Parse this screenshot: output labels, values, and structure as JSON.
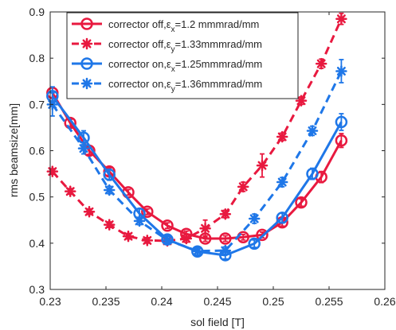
{
  "chart_data": {
    "type": "line",
    "xlabel": "sol field [T]",
    "ylabel": "rms beamsize[mm]",
    "xlim": [
      0.23,
      0.26
    ],
    "ylim": [
      0.3,
      0.9
    ],
    "xticks": [
      "0.23",
      "0.235",
      "0.24",
      "0.245",
      "0.25",
      "0.255",
      "0.26"
    ],
    "yticks": [
      "0.3",
      "0.4",
      "0.5",
      "0.6",
      "0.7",
      "0.8",
      "0.9"
    ],
    "grid": false,
    "legend_position": "top-left",
    "series": [
      {
        "name": "corrector off,εx=1.2 mmmrad/mm",
        "legend": {
          "prefix": "corrector off,",
          "sym": "ε",
          "sub": "x",
          "suffix": "=1.2 mmmrad/mm"
        },
        "color": "#e8193f",
        "marker": "circle",
        "linestyle": "solid",
        "x": [
          0.2302,
          0.2318,
          0.2335,
          0.2353,
          0.237,
          0.2387,
          0.2405,
          0.2422,
          0.2439,
          0.2457,
          0.2473,
          0.249,
          0.2508,
          0.2525,
          0.2543,
          0.2561
        ],
        "y": [
          0.725,
          0.66,
          0.6,
          0.555,
          0.51,
          0.468,
          0.438,
          0.42,
          0.41,
          0.41,
          0.413,
          0.418,
          0.445,
          0.488,
          0.543,
          0.622
        ],
        "err": [
          0.012,
          0.008,
          0.008,
          0.008,
          0.006,
          0.006,
          0.006,
          0.006,
          0.006,
          0.006,
          0.006,
          0.006,
          0.008,
          0.008,
          0.012,
          0.015
        ]
      },
      {
        "name": "corrector off,εy=1.33mmmrad/mm",
        "legend": {
          "prefix": "corrector off,",
          "sym": "ε",
          "sub": "y",
          "suffix": "=1.33mmmrad/mm"
        },
        "color": "#e8193f",
        "marker": "asterisk",
        "linestyle": "dashed",
        "x": [
          0.2302,
          0.2318,
          0.2335,
          0.2353,
          0.237,
          0.2387,
          0.2405,
          0.2422,
          0.2439,
          0.2457,
          0.2473,
          0.249,
          0.2508,
          0.2525,
          0.2543,
          0.2561
        ],
        "y": [
          0.555,
          0.512,
          0.468,
          0.44,
          0.415,
          0.406,
          0.405,
          0.41,
          0.432,
          0.463,
          0.522,
          0.568,
          0.63,
          0.708,
          0.788,
          0.885
        ],
        "err": [
          0.006,
          0.006,
          0.006,
          0.006,
          0.006,
          0.006,
          0.006,
          0.008,
          0.018,
          0.008,
          0.01,
          0.025,
          0.008,
          0.008,
          0.01,
          0.012
        ]
      },
      {
        "name": "corrector on,εx=1.25mmmrad/mm",
        "legend": {
          "prefix": "corrector on,",
          "sym": "ε",
          "sub": "x",
          "suffix": "=1.25mmmrad/mm"
        },
        "color": "#1f77e8",
        "marker": "circle",
        "linestyle": "solid",
        "x": [
          0.2302,
          0.233,
          0.2353,
          0.238,
          0.2405,
          0.2432,
          0.2457,
          0.2483,
          0.2508,
          0.2535,
          0.2561
        ],
        "y": [
          0.718,
          0.628,
          0.548,
          0.464,
          0.408,
          0.382,
          0.374,
          0.399,
          0.455,
          0.55,
          0.662
        ],
        "err": [
          0.02,
          0.015,
          0.012,
          0.01,
          0.008,
          0.008,
          0.008,
          0.008,
          0.01,
          0.012,
          0.018
        ]
      },
      {
        "name": "corrector on,εy=1.36mmmrad/mm",
        "legend": {
          "prefix": "corrector on,",
          "sym": "ε",
          "sub": "y",
          "suffix": "=1.36mmmrad/mm"
        },
        "color": "#1f77e8",
        "marker": "asterisk",
        "linestyle": "dashed",
        "x": [
          0.2302,
          0.233,
          0.2353,
          0.238,
          0.2405,
          0.2432,
          0.2457,
          0.2483,
          0.2508,
          0.2535,
          0.2561
        ],
        "y": [
          0.7,
          0.605,
          0.515,
          0.448,
          0.407,
          0.383,
          0.384,
          0.453,
          0.532,
          0.643,
          0.772
        ],
        "err": [
          0.025,
          0.012,
          0.008,
          0.008,
          0.008,
          0.008,
          0.008,
          0.01,
          0.01,
          0.01,
          0.025
        ]
      }
    ]
  }
}
